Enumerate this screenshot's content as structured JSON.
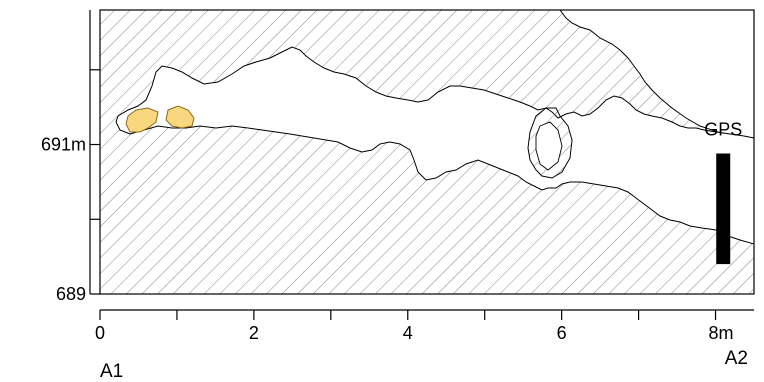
{
  "figure": {
    "type": "cross-section profile",
    "background": "#ffffff",
    "rock_hatch_color": "#7a7a7a",
    "sediment_color": "#f9d77e",
    "gps_bar_color": "#000000"
  },
  "x_axis": {
    "unit": "m",
    "range": [
      0,
      8.5
    ],
    "ticks": [
      0,
      1,
      2,
      3,
      4,
      5,
      6,
      7,
      8
    ],
    "tick_labels": [
      {
        "value": 0,
        "label": "0"
      },
      {
        "value": 2,
        "label": "2"
      },
      {
        "value": 4,
        "label": "4"
      },
      {
        "value": 6,
        "label": "6"
      },
      {
        "value": 8,
        "label": "8m"
      }
    ]
  },
  "y_axis": {
    "unit": "m",
    "range": [
      689,
      692.8
    ],
    "ticks": [
      689,
      690,
      691,
      692
    ],
    "tick_labels": [
      {
        "value": 691,
        "label": "691m"
      },
      {
        "value": 689,
        "label": "689"
      }
    ]
  },
  "endpoints": {
    "left": "A1",
    "right": "A2"
  },
  "gps": {
    "label": "GPS",
    "x": 8.1,
    "y_top": 690.88,
    "y_bottom": 689.4
  }
}
